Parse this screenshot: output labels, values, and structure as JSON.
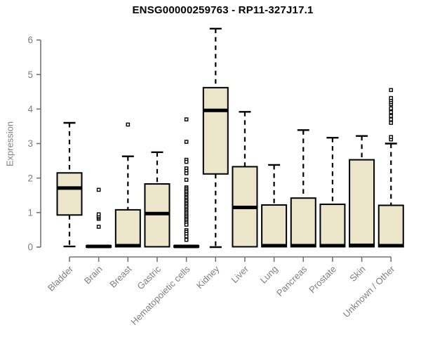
{
  "chart_data": {
    "type": "boxplot",
    "title": "ENSG00000259763 - RP11-327J17.1",
    "ylabel": "Expression",
    "xlabel": "",
    "ylim": [
      0,
      6
    ],
    "yticks": [
      0,
      1,
      2,
      3,
      4,
      5,
      6
    ],
    "grid": "off",
    "legend": "none",
    "categories": [
      "Bladder",
      "Brain",
      "Breast",
      "Gastric",
      "Hematopoietic cells",
      "Kidney",
      "Liver",
      "Lung",
      "Pancreas",
      "Prostate",
      "Skin",
      "Unknown / Other"
    ],
    "series": [
      {
        "name": "Bladder",
        "whisker_low": 0.02,
        "q1": 0.93,
        "median": 1.71,
        "q3": 2.15,
        "whisker_high": 3.6,
        "outliers": []
      },
      {
        "name": "Brain",
        "whisker_low": 0.0,
        "q1": 0.0,
        "median": 0.02,
        "q3": 0.04,
        "whisker_high": 0.04,
        "outliers": [
          0.59,
          0.82,
          0.86,
          0.9,
          0.95,
          1.66
        ]
      },
      {
        "name": "Breast",
        "whisker_low": 0.0,
        "q1": 0.01,
        "median": 0.04,
        "q3": 1.08,
        "whisker_high": 2.63,
        "outliers": [
          3.55
        ]
      },
      {
        "name": "Gastric",
        "whisker_low": 0.0,
        "q1": 0.01,
        "median": 0.97,
        "q3": 1.83,
        "whisker_high": 2.75,
        "outliers": []
      },
      {
        "name": "Hematopoietic cells",
        "whisker_low": 0.0,
        "q1": 0.0,
        "median": 0.02,
        "q3": 0.04,
        "whisker_high": 0.04,
        "outliers": [
          3.7,
          3.05,
          2.53,
          2.47,
          2.28,
          2.21,
          2.14,
          1.95,
          1.73,
          1.69,
          1.64,
          1.6,
          1.55,
          1.51,
          1.46,
          1.42,
          1.37,
          1.33,
          1.28,
          1.24,
          1.19,
          1.15,
          1.1,
          1.06,
          1.01,
          0.97,
          0.92,
          0.88,
          0.83,
          0.79,
          0.74,
          0.7,
          0.65,
          0.49,
          0.44,
          0.38,
          0.31,
          0.21
        ]
      },
      {
        "name": "Kidney",
        "whisker_low": 0.0,
        "q1": 2.12,
        "median": 3.96,
        "q3": 4.62,
        "whisker_high": 6.33,
        "outliers": []
      },
      {
        "name": "Liver",
        "whisker_low": 0.0,
        "q1": 0.01,
        "median": 1.15,
        "q3": 2.33,
        "whisker_high": 3.92,
        "outliers": []
      },
      {
        "name": "Lung",
        "whisker_low": 0.0,
        "q1": 0.01,
        "median": 0.04,
        "q3": 1.22,
        "whisker_high": 2.38,
        "outliers": []
      },
      {
        "name": "Pancreas",
        "whisker_low": 0.0,
        "q1": 0.01,
        "median": 0.04,
        "q3": 1.42,
        "whisker_high": 3.39,
        "outliers": []
      },
      {
        "name": "Prostate",
        "whisker_low": 0.0,
        "q1": 0.01,
        "median": 0.04,
        "q3": 1.24,
        "whisker_high": 3.17,
        "outliers": []
      },
      {
        "name": "Skin",
        "whisker_low": 0.0,
        "q1": 0.01,
        "median": 0.05,
        "q3": 2.53,
        "whisker_high": 3.22,
        "outliers": []
      },
      {
        "name": "Unknown / Other",
        "whisker_low": 0.0,
        "q1": 0.01,
        "median": 0.04,
        "q3": 1.21,
        "whisker_high": 3.0,
        "outliers": [
          3.12,
          3.19,
          3.6,
          3.7,
          3.8,
          3.91,
          4.02,
          4.14,
          4.2,
          4.26,
          4.32,
          4.55
        ]
      }
    ],
    "colors": {
      "box_fill": "#ebe5ca",
      "box_border": "#000000",
      "median": "#000000",
      "whisker": "#000000",
      "outlier_stroke": "#000000",
      "outlier_fill": "#ffffff",
      "axis": "#757575",
      "tick_text": "#7e7e7e",
      "title": "#000000",
      "background": "#ffffff"
    }
  }
}
